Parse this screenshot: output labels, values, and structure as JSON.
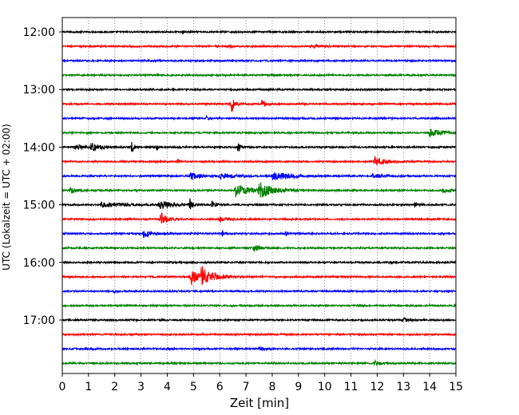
{
  "chart_data": {
    "type": "line",
    "title": "",
    "xlabel": "Zeit  [min]",
    "ylabel": "UTC (Lokalzeit = UTC + 02:00)",
    "xlim": [
      0,
      15
    ],
    "x_ticks": [
      "0",
      "1",
      "2",
      "3",
      "4",
      "5",
      "6",
      "7",
      "8",
      "9",
      "10",
      "11",
      "12",
      "13",
      "14",
      "15"
    ],
    "y_ticks": [
      "12:00",
      "13:00",
      "14:00",
      "15:00",
      "16:00",
      "17:00"
    ],
    "grid": "vertical dotted at each minute",
    "trace_interval_minutes": 15,
    "trace_start": "12:00",
    "traces_per_hour": 4,
    "colors": [
      "#000000",
      "#ff0000",
      "#0000ff",
      "#008000"
    ],
    "series": [
      {
        "start": "12:00",
        "color": "#000000",
        "events": [
          {
            "t": 4.6,
            "amp": 0.25,
            "dur": 0.1
          }
        ]
      },
      {
        "start": "12:15",
        "color": "#ff0000",
        "events": [
          {
            "t": 6.4,
            "amp": 0.2,
            "dur": 0.1
          },
          {
            "t": 9.5,
            "amp": 0.2,
            "dur": 1.0
          }
        ]
      },
      {
        "start": "12:30",
        "color": "#0000ff",
        "events": []
      },
      {
        "start": "12:45",
        "color": "#008000",
        "events": []
      },
      {
        "start": "13:00",
        "color": "#000000",
        "events": []
      },
      {
        "start": "13:15",
        "color": "#ff0000",
        "events": [
          {
            "t": 6.45,
            "amp": 1.4,
            "dur": 0.25
          },
          {
            "t": 7.6,
            "amp": 0.6,
            "dur": 0.3
          }
        ]
      },
      {
        "start": "13:30",
        "color": "#0000ff",
        "events": [
          {
            "t": 5.5,
            "amp": 0.3,
            "dur": 0.2
          }
        ]
      },
      {
        "start": "13:45",
        "color": "#008000",
        "events": [
          {
            "t": 14.0,
            "amp": 0.6,
            "dur": 1.0
          }
        ]
      },
      {
        "start": "14:00",
        "color": "#000000",
        "events": [
          {
            "t": 0.5,
            "amp": 0.4,
            "dur": 0.6
          },
          {
            "t": 1.1,
            "amp": 0.6,
            "dur": 0.8
          },
          {
            "t": 2.65,
            "amp": 1.2,
            "dur": 0.15
          },
          {
            "t": 3.6,
            "amp": 0.5,
            "dur": 0.1
          },
          {
            "t": 6.7,
            "amp": 0.9,
            "dur": 0.2
          }
        ]
      },
      {
        "start": "14:15",
        "color": "#ff0000",
        "events": [
          {
            "t": 4.4,
            "amp": 0.5,
            "dur": 0.1
          },
          {
            "t": 11.9,
            "amp": 0.7,
            "dur": 0.8
          }
        ]
      },
      {
        "start": "14:30",
        "color": "#0000ff",
        "events": [
          {
            "t": 4.9,
            "amp": 0.6,
            "dur": 0.6
          },
          {
            "t": 6.0,
            "amp": 0.4,
            "dur": 1.0
          },
          {
            "t": 8.0,
            "amp": 0.6,
            "dur": 1.8
          },
          {
            "t": 11.8,
            "amp": 0.4,
            "dur": 0.8
          }
        ]
      },
      {
        "start": "14:45",
        "color": "#008000",
        "events": [
          {
            "t": 0.3,
            "amp": 0.4,
            "dur": 0.6
          },
          {
            "t": 6.6,
            "amp": 1.1,
            "dur": 0.9
          },
          {
            "t": 7.5,
            "amp": 1.3,
            "dur": 1.0
          },
          {
            "t": 14.5,
            "amp": 0.3,
            "dur": 0.8
          }
        ]
      },
      {
        "start": "15:00",
        "color": "#000000",
        "events": [
          {
            "t": 1.5,
            "amp": 0.4,
            "dur": 1.5
          },
          {
            "t": 3.7,
            "amp": 0.7,
            "dur": 0.8
          },
          {
            "t": 4.85,
            "amp": 1.0,
            "dur": 0.2
          },
          {
            "t": 5.7,
            "amp": 0.5,
            "dur": 0.4
          },
          {
            "t": 13.4,
            "amp": 0.4,
            "dur": 0.3
          }
        ]
      },
      {
        "start": "15:15",
        "color": "#ff0000",
        "events": [
          {
            "t": 3.75,
            "amp": 1.0,
            "dur": 0.5
          },
          {
            "t": 6.0,
            "amp": 0.4,
            "dur": 0.6
          }
        ]
      },
      {
        "start": "15:30",
        "color": "#0000ff",
        "events": [
          {
            "t": 3.1,
            "amp": 0.6,
            "dur": 0.6
          },
          {
            "t": 6.1,
            "amp": 0.5,
            "dur": 0.2
          },
          {
            "t": 8.5,
            "amp": 0.3,
            "dur": 0.3
          }
        ]
      },
      {
        "start": "15:45",
        "color": "#008000",
        "events": [
          {
            "t": 7.3,
            "amp": 0.6,
            "dur": 0.5
          }
        ]
      },
      {
        "start": "16:00",
        "color": "#000000",
        "events": [
          {
            "t": 12.5,
            "amp": 0.25,
            "dur": 0.3
          }
        ]
      },
      {
        "start": "16:15",
        "color": "#ff0000",
        "events": [
          {
            "t": 4.9,
            "amp": 1.3,
            "dur": 0.6
          },
          {
            "t": 5.3,
            "amp": 1.6,
            "dur": 0.9
          }
        ]
      },
      {
        "start": "16:30",
        "color": "#0000ff",
        "events": [
          {
            "t": 2.0,
            "amp": 0.25,
            "dur": 0.2
          }
        ]
      },
      {
        "start": "16:45",
        "color": "#008000",
        "events": []
      },
      {
        "start": "17:00",
        "color": "#000000",
        "events": [
          {
            "t": 13.0,
            "amp": 0.3,
            "dur": 0.4
          }
        ]
      },
      {
        "start": "17:15",
        "color": "#ff0000",
        "events": []
      },
      {
        "start": "17:30",
        "color": "#0000ff",
        "events": [
          {
            "t": 7.5,
            "amp": 0.4,
            "dur": 0.3
          },
          {
            "t": 9.9,
            "amp": 0.25,
            "dur": 0.2
          }
        ]
      },
      {
        "start": "17:45",
        "color": "#008000",
        "events": [
          {
            "t": 11.9,
            "amp": 0.6,
            "dur": 0.3
          }
        ]
      }
    ]
  }
}
